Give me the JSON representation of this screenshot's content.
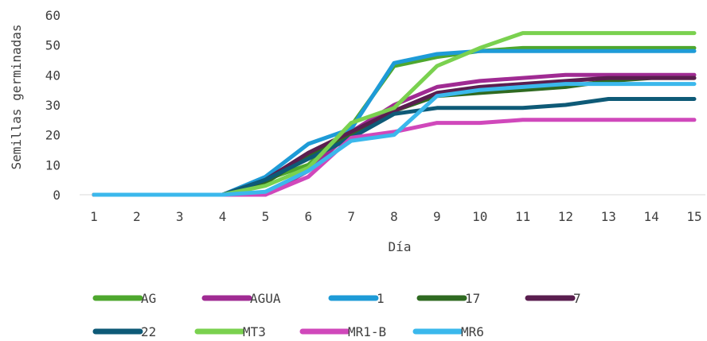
{
  "chart_data": {
    "type": "line",
    "title": "",
    "xlabel": "Día",
    "ylabel": "Semillas germinadas",
    "x": [
      1,
      2,
      3,
      4,
      5,
      6,
      7,
      8,
      9,
      10,
      11,
      12,
      13,
      14,
      15
    ],
    "xlim": [
      1,
      15
    ],
    "ylim": [
      0,
      60
    ],
    "yticks": [
      0,
      10,
      20,
      30,
      40,
      50,
      60
    ],
    "grid": false,
    "legend": "bottom",
    "series": [
      {
        "name": "AG",
        "color": "#4ea72e",
        "values": [
          0,
          0,
          0,
          0,
          5,
          10,
          23,
          43,
          46,
          48,
          49,
          49,
          49,
          49,
          49
        ]
      },
      {
        "name": "AGUA",
        "color": "#a02b93",
        "values": [
          0,
          0,
          0,
          0,
          0,
          8,
          21,
          30,
          36,
          38,
          39,
          40,
          40,
          40,
          40
        ]
      },
      {
        "name": "1",
        "color": "#1e9bd7",
        "values": [
          0,
          0,
          0,
          0,
          6,
          17,
          22,
          44,
          47,
          48,
          48,
          48,
          48,
          48,
          48
        ]
      },
      {
        "name": "17",
        "color": "#2f6a21",
        "values": [
          0,
          0,
          0,
          0,
          4,
          13,
          20,
          28,
          33,
          34,
          35,
          36,
          38,
          39,
          39
        ]
      },
      {
        "name": "7",
        "color": "#5a1e4f",
        "values": [
          0,
          0,
          0,
          0,
          5,
          14,
          21,
          28,
          34,
          36,
          37,
          38,
          39,
          39,
          39
        ]
      },
      {
        "name": "22",
        "color": "#0e5a77",
        "values": [
          0,
          0,
          0,
          0,
          5,
          12,
          19,
          27,
          29,
          29,
          29,
          30,
          32,
          32,
          32
        ]
      },
      {
        "name": "MT3",
        "color": "#7ad14f",
        "values": [
          0,
          0,
          0,
          0,
          3,
          9,
          24,
          29,
          43,
          49,
          54,
          54,
          54,
          54,
          54
        ]
      },
      {
        "name": "MR1-B",
        "color": "#d048bb",
        "values": [
          0,
          0,
          0,
          0,
          0,
          6,
          19,
          21,
          24,
          24,
          25,
          25,
          25,
          25,
          25
        ]
      },
      {
        "name": "MR6",
        "color": "#3bb8ec",
        "values": [
          0,
          0,
          0,
          0,
          1,
          8,
          18,
          20,
          33,
          35,
          36,
          37,
          37,
          37,
          37
        ]
      }
    ]
  }
}
